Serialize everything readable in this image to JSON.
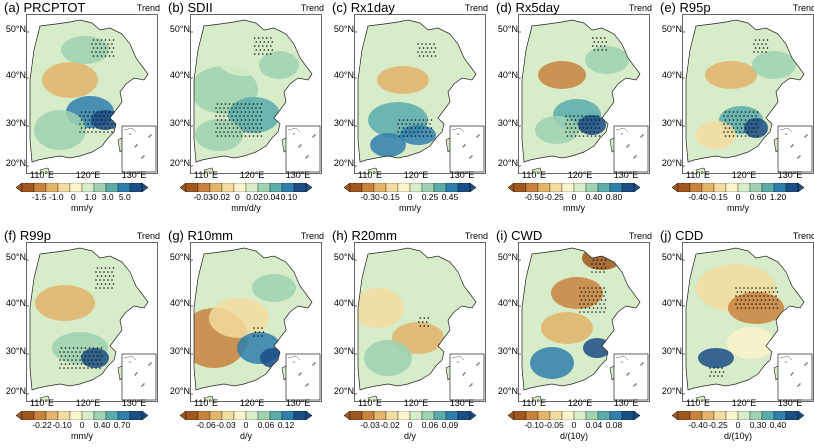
{
  "lat_labels": [
    "50°N",
    "40°N",
    "30°N",
    "20°N"
  ],
  "lon_labels": [
    "110°E",
    "120°E",
    "130°E"
  ],
  "palette": [
    "#a0581e",
    "#c8843e",
    "#e3b46a",
    "#f3dca0",
    "#fbf4cd",
    "#d7ecc8",
    "#9fd2b0",
    "#5aadaa",
    "#2f7fae",
    "#1c4e86"
  ],
  "panels": [
    {
      "title": "(a) PRCPTOT",
      "trend": "Trend",
      "unit": "mm/y",
      "ticks": [
        "-1.5",
        "-1.0",
        "0",
        "1.0",
        "3.0",
        "5.0"
      ]
    },
    {
      "title": "(b) SDII",
      "trend": "Trend",
      "unit": "mm/d/y",
      "ticks": [
        "-0.03",
        "-0.02",
        "0",
        "0.02",
        "0.04",
        "0.10"
      ]
    },
    {
      "title": "(c) Rx1day",
      "trend": "Trend",
      "unit": "mm/y",
      "ticks": [
        "-0.30",
        "-0.15",
        "0",
        "0.25",
        "0.45"
      ]
    },
    {
      "title": "(d) Rx5day",
      "trend": "Trend",
      "unit": "mm/y",
      "ticks": [
        "-0.50",
        "-0.25",
        "0",
        "0.40",
        "0.80"
      ]
    },
    {
      "title": "(e) R95p",
      "trend": "Trend",
      "unit": "mm/y",
      "ticks": [
        "-0.40",
        "-0.15",
        "0",
        "0.60",
        "1.20"
      ]
    },
    {
      "title": "(f) R99p",
      "trend": "Trend",
      "unit": "mm/y",
      "ticks": [
        "-0.22",
        "-0.10",
        "0",
        "0.40",
        "0.70"
      ]
    },
    {
      "title": "(g) R10mm",
      "trend": "Trend",
      "unit": "d/y",
      "ticks": [
        "-0.06",
        "-0.03",
        "0",
        "0.06",
        "0.12"
      ]
    },
    {
      "title": "(h) R20mm",
      "trend": "Trend",
      "unit": "d/y",
      "ticks": [
        "-0.03",
        "-0.02",
        "0",
        "0.06",
        "0.09"
      ]
    },
    {
      "title": "(i) CWD",
      "trend": "Trend",
      "unit": "d/(10y)",
      "ticks": [
        "-0.10",
        "-0.05",
        "0",
        "0.04",
        "0.08"
      ]
    },
    {
      "title": "(j) CDD",
      "trend": "Trend",
      "unit": "d/(10y)",
      "ticks": [
        "-0.40",
        "-0.25",
        "0",
        "0.30",
        "0.40"
      ]
    }
  ]
}
